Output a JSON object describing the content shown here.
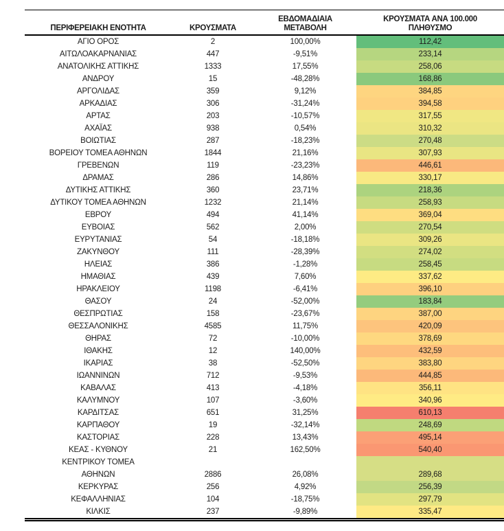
{
  "table": {
    "headers": [
      "ΠΕΡΙΦΕΡΕΙΑΚΗ ΕΝΟΤΗΤΑ",
      "ΚΡΟΥΣΜΑΤΑ",
      "ΕΒΔΟΜΑΔΙΑΙΑ ΜΕΤΑΒΟΛΗ",
      "ΚΡΟΥΣΜΑΤΑ ΑΝΑ 100.000 ΠΛΗΘΥΣΜΟ"
    ],
    "rows": [
      {
        "name": "ΑΓΙΟ ΟΡΟΣ",
        "cases": "2",
        "change": "100,00%",
        "per100k": "112,42",
        "color": "#63BE7B"
      },
      {
        "name": "ΑΙΤΩΛΟΑΚΑΡΝΑΝΙΑΣ",
        "cases": "447",
        "change": "-9,51%",
        "per100k": "233,14",
        "color": "#B6D680"
      },
      {
        "name": "ΑΝΑΤΟΛΙΚΗΣ ΑΤΤΙΚΗΣ",
        "cases": "1333",
        "change": "17,55%",
        "per100k": "258,06",
        "color": "#C7DB81"
      },
      {
        "name": "ΑΝΔΡΟΥ",
        "cases": "15",
        "change": "-48,28%",
        "per100k": "168,86",
        "color": "#8AC97D"
      },
      {
        "name": "ΑΡΓΟΛΙΔΑΣ",
        "cases": "359",
        "change": "9,12%",
        "per100k": "384,85",
        "color": "#FED580"
      },
      {
        "name": "ΑΡΚΑΔΙΑΣ",
        "cases": "306",
        "change": "-31,24%",
        "per100k": "394,58",
        "color": "#FED17F"
      },
      {
        "name": "ΑΡΤΑΣ",
        "cases": "203",
        "change": "-10,57%",
        "per100k": "317,55",
        "color": "#F0E783"
      },
      {
        "name": "ΑΧΑΪΑΣ",
        "cases": "938",
        "change": "0,54%",
        "per100k": "310,32",
        "color": "#EBE583"
      },
      {
        "name": "ΒΟΙΩΤΙΑΣ",
        "cases": "287",
        "change": "-18,23%",
        "per100k": "270,48",
        "color": "#CCDC85"
      },
      {
        "name": "ΒΟΡΕΙΟΥ ΤΟΜΕΑ ΑΘΗΝΩΝ",
        "cases": "1844",
        "change": "21,16%",
        "per100k": "307,93",
        "color": "#E9E583"
      },
      {
        "name": "ΓΡΕΒΕΝΩΝ",
        "cases": "119",
        "change": "-23,23%",
        "per100k": "446,61",
        "color": "#FCB87A"
      },
      {
        "name": "ΔΡΑΜΑΣ",
        "cases": "286",
        "change": "14,86%",
        "per100k": "330,17",
        "color": "#F8E984"
      },
      {
        "name": "ΔΥΤΙΚΗΣ ΑΤΤΙΚΗΣ",
        "cases": "360",
        "change": "23,71%",
        "per100k": "218,36",
        "color": "#ACD37F"
      },
      {
        "name": "ΔΥΤΙΚΟΥ ΤΟΜΕΑ ΑΘΗΝΩΝ",
        "cases": "1232",
        "change": "21,14%",
        "per100k": "258,93",
        "color": "#C7DB81"
      },
      {
        "name": "ΕΒΡΟΥ",
        "cases": "494",
        "change": "41,14%",
        "per100k": "369,04",
        "color": "#FEDD81"
      },
      {
        "name": "ΕΥΒΟΙΑΣ",
        "cases": "562",
        "change": "2,00%",
        "per100k": "270,54",
        "color": "#CFDD81"
      },
      {
        "name": "ΕΥΡΥΤΑΝΙΑΣ",
        "cases": "54",
        "change": "-18,18%",
        "per100k": "309,26",
        "color": "#EAE583"
      },
      {
        "name": "ΖΑΚΥΝΘΟΥ",
        "cases": "111",
        "change": "-28,39%",
        "per100k": "274,02",
        "color": "#D2DE81"
      },
      {
        "name": "ΗΛΕΙΑΣ",
        "cases": "386",
        "change": "-1,28%",
        "per100k": "258,45",
        "color": "#C7DB81"
      },
      {
        "name": "ΗΜΑΘΙΑΣ",
        "cases": "439",
        "change": "7,60%",
        "per100k": "337,62",
        "color": "#FEEB84"
      },
      {
        "name": "ΗΡΑΚΛΕΙΟΥ",
        "cases": "1198",
        "change": "-6,41%",
        "per100k": "396,10",
        "color": "#FED07F"
      },
      {
        "name": "ΘΑΣΟΥ",
        "cases": "24",
        "change": "-52,00%",
        "per100k": "183,84",
        "color": "#94CC7E"
      },
      {
        "name": "ΘΕΣΠΡΩΤΙΑΣ",
        "cases": "158",
        "change": "-23,67%",
        "per100k": "387,00",
        "color": "#FED480"
      },
      {
        "name": "ΘΕΣΣΑΛΟΝΙΚΗΣ",
        "cases": "4585",
        "change": "11,75%",
        "per100k": "420,09",
        "color": "#FDC47D"
      },
      {
        "name": "ΘΗΡΑΣ",
        "cases": "72",
        "change": "-10,00%",
        "per100k": "378,69",
        "color": "#FED880"
      },
      {
        "name": "ΙΘΑΚΗΣ",
        "cases": "12",
        "change": "140,00%",
        "per100k": "432,59",
        "color": "#FDBE7B"
      },
      {
        "name": "ΙΚΑΡΙΑΣ",
        "cases": "38",
        "change": "-52,50%",
        "per100k": "383,80",
        "color": "#FED580"
      },
      {
        "name": "ΙΩΑΝΝΙΝΩΝ",
        "cases": "712",
        "change": "-9,53%",
        "per100k": "444,85",
        "color": "#FCB97A"
      },
      {
        "name": "ΚΑΒΑΛΑΣ",
        "cases": "413",
        "change": "-4,18%",
        "per100k": "356,11",
        "color": "#FFE383"
      },
      {
        "name": "ΚΑΛΥΜΝΟΥ",
        "cases": "107",
        "change": "-3,60%",
        "per100k": "340,96",
        "color": "#FFEB84"
      },
      {
        "name": "ΚΑΡΔΙΤΣΑΣ",
        "cases": "651",
        "change": "31,25%",
        "per100k": "610,13",
        "color": "#F57F6E"
      },
      {
        "name": "ΚΑΡΠΑΘΟΥ",
        "cases": "19",
        "change": "-32,14%",
        "per100k": "248,69",
        "color": "#C0D980"
      },
      {
        "name": "ΚΑΣΤΟΡΙΑΣ",
        "cases": "228",
        "change": "13,43%",
        "per100k": "495,14",
        "color": "#FBA076"
      },
      {
        "name": "ΚΕΑΣ - ΚΥΘΝΟΥ",
        "cases": "21",
        "change": "162,50%",
        "per100k": "540,40",
        "color": "#FA9772"
      },
      {
        "name": "ΚΕΝΤΡΙΚΟΥ ΤΟΜΕΑ",
        "name2": "ΑΘΗΝΩΝ",
        "cases": "2886",
        "change": "26,08%",
        "per100k": "289,68",
        "color": "#D6DE85"
      },
      {
        "name": "ΚΕΡΚΥΡΑΣ",
        "cases": "256",
        "change": "4,92%",
        "per100k": "256,39",
        "color": "#C2D985"
      },
      {
        "name": "ΚΕΦΑΛΛΗΝΙΑΣ",
        "cases": "104",
        "change": "-18,75%",
        "per100k": "297,79",
        "color": "#E2E382"
      },
      {
        "name": "ΚΙΛΚΙΣ",
        "cases": "237",
        "change": "-9,89%",
        "per100k": "335,47",
        "color": "#FEEA84"
      }
    ]
  },
  "color_scale": {
    "low": "#63BE7B",
    "mid": "#FFEB84",
    "high": "#F8696B",
    "text": "#1c1c1c",
    "border": "#000000"
  }
}
